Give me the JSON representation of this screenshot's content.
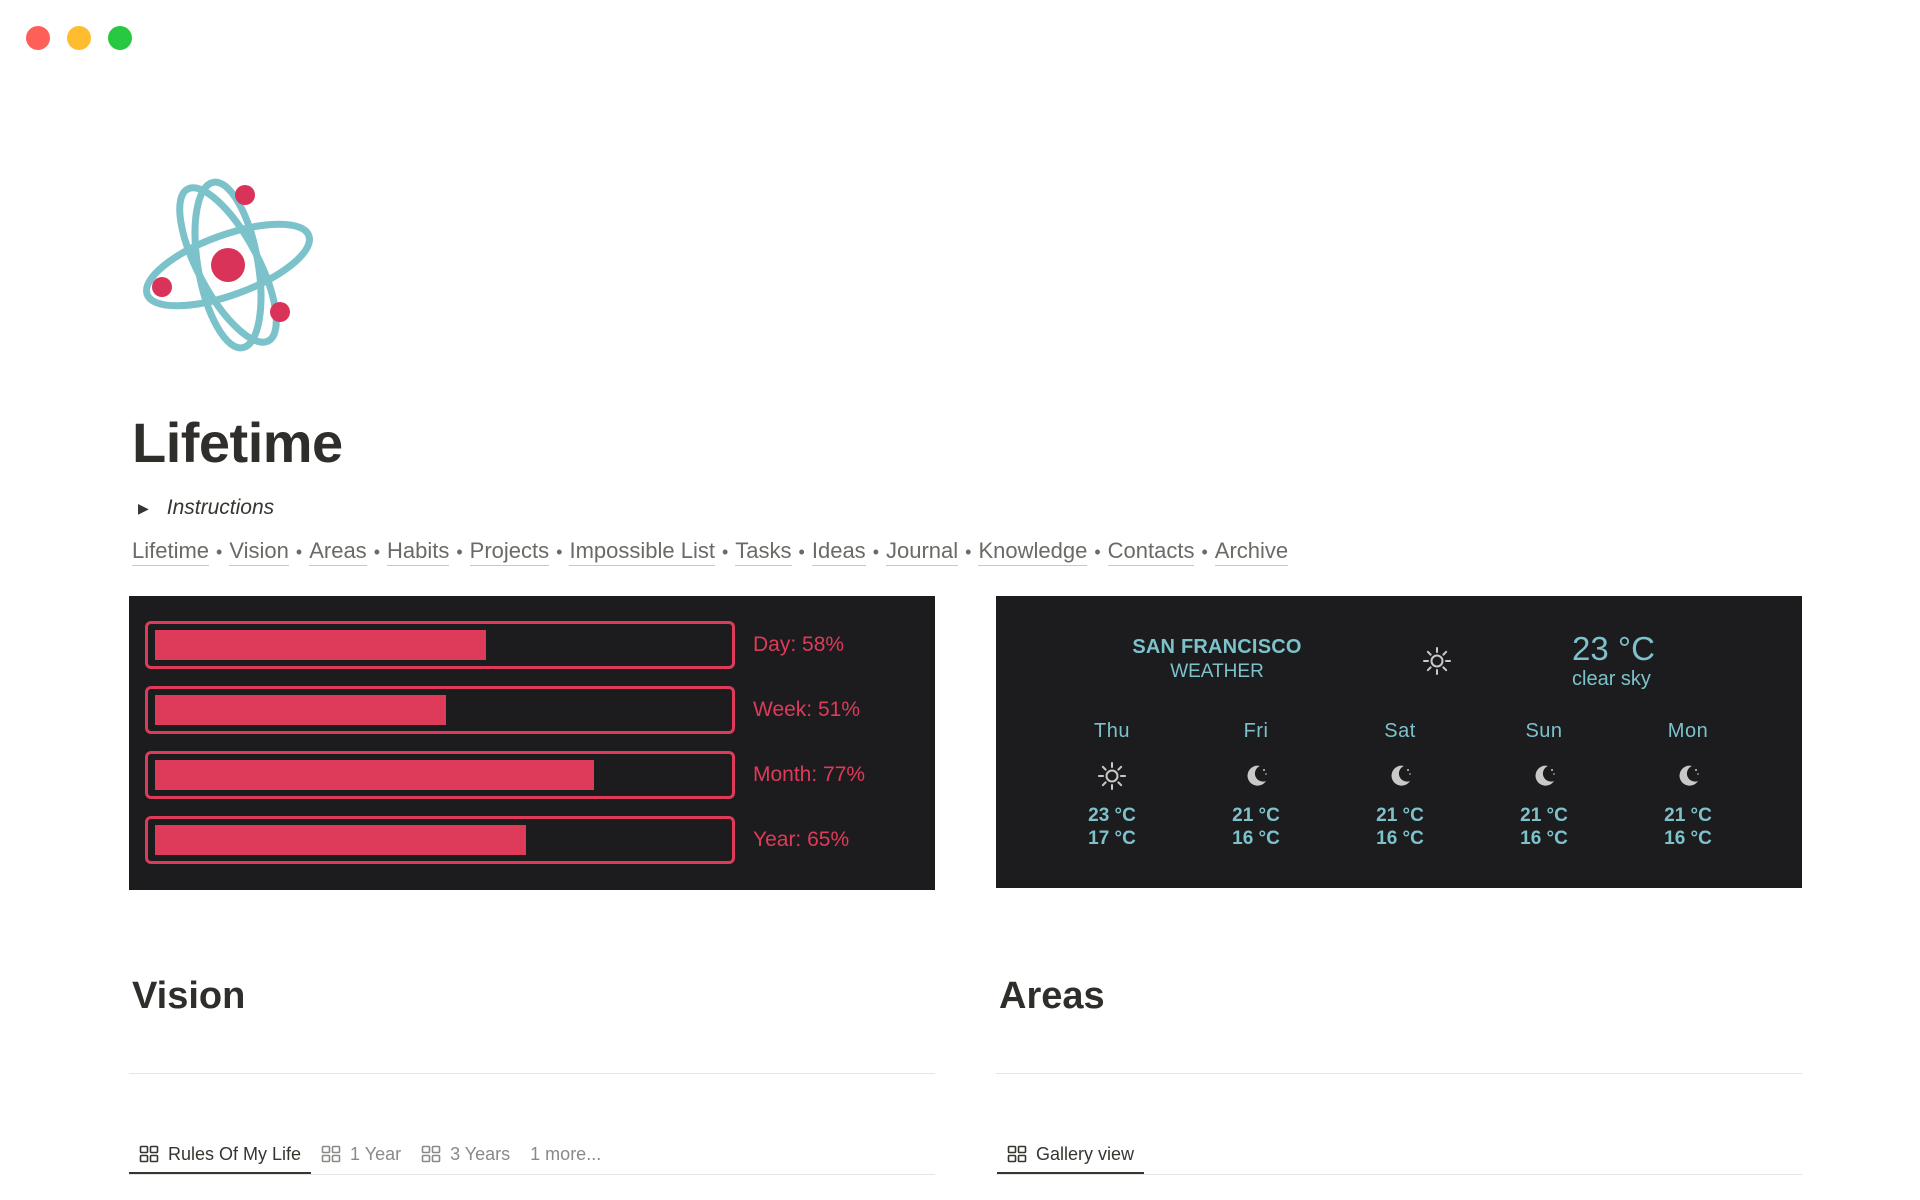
{
  "page": {
    "title": "Lifetime",
    "icon": "atom-icon",
    "toggle_label": "Instructions"
  },
  "nav_links": [
    "Lifetime",
    "Vision",
    "Areas",
    "Habits",
    "Projects",
    "Impossible List",
    "Tasks",
    "Ideas",
    "Journal",
    "Knowledge",
    "Contacts",
    "Archive"
  ],
  "nav_separator": "•",
  "progress": {
    "accent": "#de3a5a",
    "items": [
      {
        "label": "Day: 58%",
        "value": 0.58
      },
      {
        "label": "Week: 51%",
        "value": 0.51
      },
      {
        "label": "Month: 77%",
        "value": 0.77
      },
      {
        "label": "Year: 65%",
        "value": 0.65
      }
    ]
  },
  "weather": {
    "accent": "#7cc2cb",
    "city": "SAN FRANCISCO",
    "subtitle": "WEATHER",
    "current_icon": "sun-icon",
    "current_temp": "23 °C",
    "current_desc": "clear sky",
    "forecast": [
      {
        "day": "Thu",
        "icon": "sun-icon",
        "high": "23 °C",
        "low": "17 °C"
      },
      {
        "day": "Fri",
        "icon": "moon-icon",
        "high": "21 °C",
        "low": "16 °C"
      },
      {
        "day": "Sat",
        "icon": "moon-icon",
        "high": "21 °C",
        "low": "16 °C"
      },
      {
        "day": "Sun",
        "icon": "moon-icon",
        "high": "21 °C",
        "low": "16 °C"
      },
      {
        "day": "Mon",
        "icon": "moon-icon",
        "high": "21 °C",
        "low": "16 °C"
      }
    ]
  },
  "vision": {
    "title": "Vision",
    "tabs": [
      {
        "label": "Rules Of My Life",
        "active": true,
        "icon": "gallery-icon"
      },
      {
        "label": "1 Year",
        "active": false,
        "icon": "gallery-icon"
      },
      {
        "label": "3 Years",
        "active": false,
        "icon": "gallery-icon"
      },
      {
        "label": "1 more...",
        "active": false,
        "icon": ""
      }
    ]
  },
  "areas": {
    "title": "Areas",
    "tabs": [
      {
        "label": "Gallery view",
        "active": true,
        "icon": "gallery-icon"
      }
    ]
  }
}
